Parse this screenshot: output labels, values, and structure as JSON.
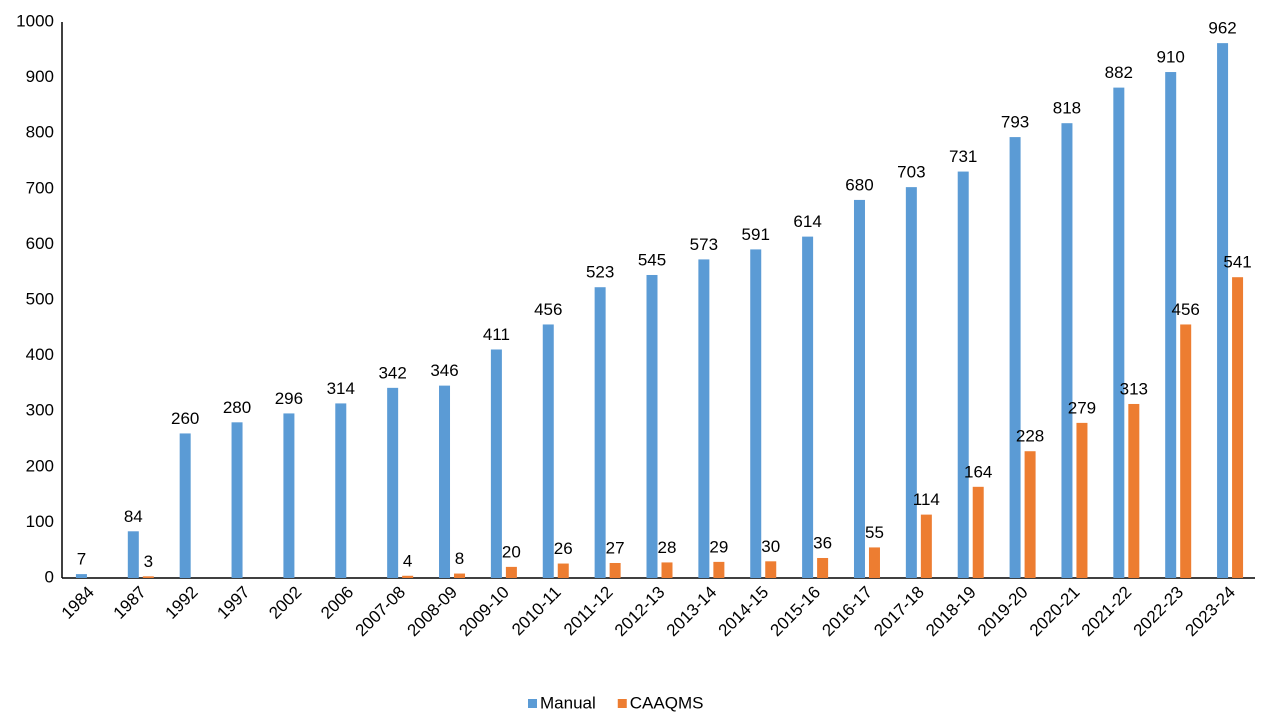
{
  "chart_data": {
    "type": "bar",
    "categories": [
      "1984",
      "1987",
      "1992",
      "1997",
      "2002",
      "2006",
      "2007-08",
      "2008-09",
      "2009-10",
      "2010-11",
      "2011-12",
      "2012-13",
      "2013-14",
      "2014-15",
      "2015-16",
      "2016-17",
      "2017-18",
      "2018-19",
      "2019-20",
      "2020-21",
      "2021-22",
      "2022-23",
      "2023-24"
    ],
    "series": [
      {
        "name": "Manual",
        "color": "#5b9bd5",
        "values": [
          7,
          84,
          260,
          280,
          296,
          314,
          342,
          346,
          411,
          456,
          523,
          545,
          573,
          591,
          614,
          680,
          703,
          731,
          793,
          818,
          882,
          910,
          962
        ]
      },
      {
        "name": "CAAQMS",
        "color": "#ed7d31",
        "values": [
          null,
          3,
          null,
          null,
          null,
          null,
          4,
          8,
          20,
          26,
          27,
          28,
          29,
          30,
          36,
          55,
          114,
          164,
          228,
          279,
          313,
          456,
          541
        ]
      }
    ],
    "ylim": [
      0,
      1000
    ],
    "yticks": [
      0,
      100,
      200,
      300,
      400,
      500,
      600,
      700,
      800,
      900,
      1000
    ],
    "grid": false,
    "legend": "bottom"
  }
}
